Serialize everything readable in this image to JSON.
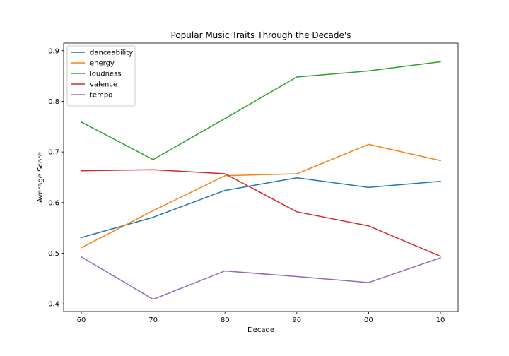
{
  "chart_data": {
    "type": "line",
    "title": "Popular Music Traits Through the Decade's",
    "xlabel": "Decade",
    "ylabel": "Average Score",
    "categories": [
      "60",
      "70",
      "80",
      "90",
      "00",
      "10"
    ],
    "ylim": [
      0.385,
      0.915
    ],
    "yticks": [
      0.4,
      0.5,
      0.6,
      0.7,
      0.8,
      0.9
    ],
    "ytick_labels": [
      "0.4",
      "0.5",
      "0.6",
      "0.7",
      "0.8",
      "0.9"
    ],
    "grid": false,
    "legend_position": "top-left",
    "series": [
      {
        "name": "danceability",
        "color": "#1f77b4",
        "values": [
          0.531,
          0.571,
          0.624,
          0.649,
          0.63,
          0.642
        ]
      },
      {
        "name": "energy",
        "color": "#ff7f0e",
        "values": [
          0.511,
          0.584,
          0.653,
          0.657,
          0.715,
          0.683
        ]
      },
      {
        "name": "loudness",
        "color": "#2ca02c",
        "values": [
          0.759,
          0.685,
          0.766,
          0.848,
          0.86,
          0.878
        ]
      },
      {
        "name": "valence",
        "color": "#d62728",
        "values": [
          0.663,
          0.665,
          0.657,
          0.582,
          0.554,
          0.494
        ]
      },
      {
        "name": "tempo",
        "color": "#9467bd",
        "values": [
          0.493,
          0.409,
          0.465,
          0.454,
          0.442,
          0.491
        ]
      }
    ]
  }
}
